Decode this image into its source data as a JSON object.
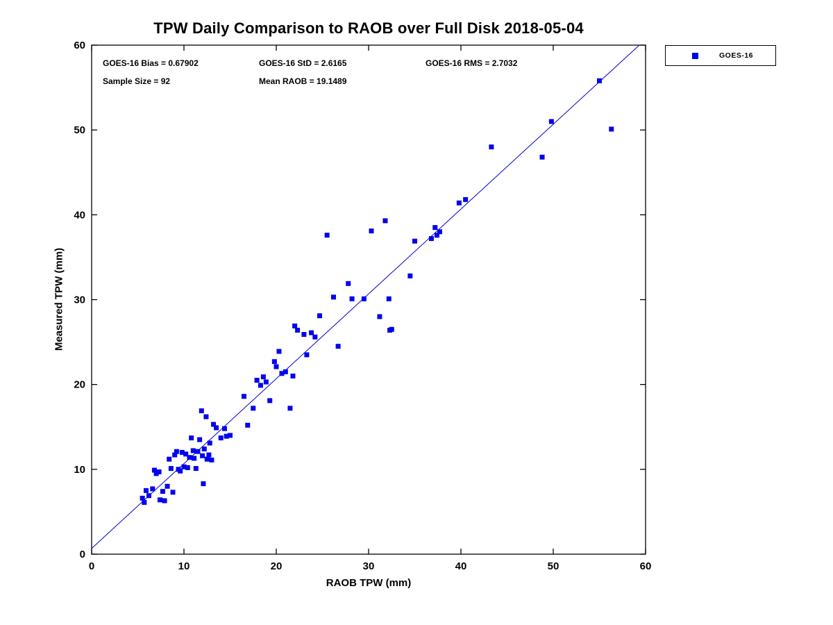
{
  "title": "TPW Daily Comparison to RAOB over Full Disk 2018-05-04",
  "chart_data": {
    "type": "scatter",
    "title": "TPW Daily Comparison to RAOB over Full Disk 2018-05-04",
    "xlabel": "RAOB TPW (mm)",
    "ylabel": "Measured TPW (mm)",
    "xlim": [
      0,
      60
    ],
    "ylim": [
      0,
      60
    ],
    "xticks": [
      0,
      10,
      20,
      30,
      40,
      50,
      60
    ],
    "yticks": [
      0,
      10,
      20,
      30,
      40,
      50,
      60
    ],
    "grid": false,
    "legend_position": "top-right-outside",
    "annotations": {
      "bias": "GOES-16 Bias = 0.67902",
      "std": "GOES-16 StD = 2.6165",
      "rms": "GOES-16 RMS = 2.7032",
      "sample": "Sample Size = 92",
      "mean_raob": "Mean RAOB = 19.1489"
    },
    "fit_line": {
      "slope": 1.0,
      "intercept": 0.679,
      "color": "#0000cc",
      "width": 1
    },
    "series": [
      {
        "name": "GOES-16",
        "marker": "square",
        "color": "#0000ee",
        "marker_size": 7,
        "points": [
          [
            5.5,
            6.6
          ],
          [
            5.7,
            6.1
          ],
          [
            5.9,
            7.5
          ],
          [
            6.2,
            6.9
          ],
          [
            6.6,
            7.7
          ],
          [
            6.8,
            9.9
          ],
          [
            7.0,
            9.5
          ],
          [
            7.3,
            9.7
          ],
          [
            7.4,
            6.4
          ],
          [
            7.7,
            7.4
          ],
          [
            7.9,
            6.3
          ],
          [
            8.2,
            8.0
          ],
          [
            8.4,
            11.2
          ],
          [
            8.6,
            10.1
          ],
          [
            8.8,
            7.3
          ],
          [
            9.0,
            11.7
          ],
          [
            9.2,
            12.1
          ],
          [
            9.4,
            10.0
          ],
          [
            9.6,
            9.8
          ],
          [
            9.8,
            12.0
          ],
          [
            10.0,
            10.3
          ],
          [
            10.2,
            11.8
          ],
          [
            10.4,
            10.2
          ],
          [
            10.6,
            11.4
          ],
          [
            10.8,
            13.7
          ],
          [
            11.0,
            12.2
          ],
          [
            11.1,
            11.3
          ],
          [
            11.3,
            10.1
          ],
          [
            11.5,
            12.1
          ],
          [
            11.7,
            13.5
          ],
          [
            11.9,
            16.9
          ],
          [
            12.0,
            11.6
          ],
          [
            12.1,
            8.3
          ],
          [
            12.2,
            12.4
          ],
          [
            12.4,
            16.2
          ],
          [
            12.5,
            11.2
          ],
          [
            12.7,
            11.7
          ],
          [
            12.8,
            13.1
          ],
          [
            13.0,
            11.1
          ],
          [
            13.2,
            15.3
          ],
          [
            13.5,
            14.9
          ],
          [
            14.0,
            13.7
          ],
          [
            14.4,
            14.8
          ],
          [
            14.6,
            13.9
          ],
          [
            15.0,
            14.0
          ],
          [
            16.5,
            18.6
          ],
          [
            16.9,
            15.2
          ],
          [
            17.5,
            17.2
          ],
          [
            17.9,
            20.5
          ],
          [
            18.3,
            19.9
          ],
          [
            18.6,
            20.9
          ],
          [
            18.9,
            20.3
          ],
          [
            19.3,
            18.1
          ],
          [
            19.8,
            22.7
          ],
          [
            20.0,
            22.1
          ],
          [
            20.3,
            23.9
          ],
          [
            20.6,
            21.3
          ],
          [
            21.0,
            21.5
          ],
          [
            21.5,
            17.2
          ],
          [
            21.8,
            21.0
          ],
          [
            22.0,
            26.9
          ],
          [
            22.3,
            26.4
          ],
          [
            23.0,
            25.9
          ],
          [
            23.3,
            23.5
          ],
          [
            23.8,
            26.1
          ],
          [
            24.2,
            25.6
          ],
          [
            24.7,
            28.1
          ],
          [
            25.5,
            37.6
          ],
          [
            26.2,
            30.3
          ],
          [
            26.7,
            24.5
          ],
          [
            27.8,
            31.9
          ],
          [
            28.2,
            30.1
          ],
          [
            29.5,
            30.1
          ],
          [
            30.3,
            38.1
          ],
          [
            31.2,
            28.0
          ],
          [
            31.8,
            39.3
          ],
          [
            32.2,
            30.1
          ],
          [
            32.3,
            26.4
          ],
          [
            32.5,
            26.5
          ],
          [
            34.5,
            32.8
          ],
          [
            35.0,
            36.9
          ],
          [
            36.8,
            37.2
          ],
          [
            37.2,
            38.5
          ],
          [
            37.4,
            37.6
          ],
          [
            37.7,
            38.0
          ],
          [
            39.8,
            41.4
          ],
          [
            40.5,
            41.8
          ],
          [
            43.3,
            48.0
          ],
          [
            48.8,
            46.8
          ],
          [
            49.8,
            51.0
          ],
          [
            55.0,
            55.8
          ],
          [
            56.3,
            50.1
          ]
        ]
      }
    ]
  }
}
